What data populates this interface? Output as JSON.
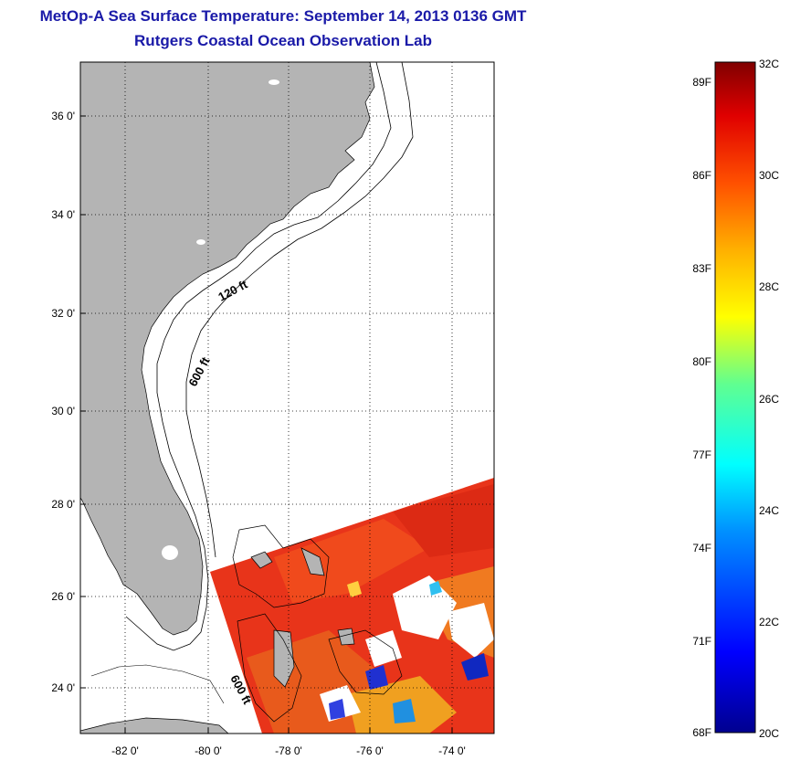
{
  "title": {
    "line1": "MetOp-A Sea Surface Temperature:  September 14, 2013 0136 GMT",
    "line2": "Rutgers Coastal Ocean Observation Lab"
  },
  "map": {
    "lat_ticks": [
      "36 0'",
      "34 0'",
      "32 0'",
      "30 0'",
      "28 0'",
      "26 0'",
      "24 0'"
    ],
    "lon_ticks": [
      "-82 0'",
      "-80 0'",
      "-78 0'",
      "-76 0'",
      "-74 0'"
    ],
    "contour_labels": [
      "120 ft",
      "600 ft",
      "600 ft"
    ],
    "colors": {
      "land": "#b4b4b4",
      "ocean": "#ffffff",
      "grid": "#000000"
    }
  },
  "colorbar": {
    "fahrenheit_labels": [
      "89F",
      "86F",
      "83F",
      "80F",
      "77F",
      "74F",
      "71F",
      "68F"
    ],
    "celsius_labels": [
      "32C",
      "30C",
      "28C",
      "26C",
      "24C",
      "22C",
      "20C"
    ],
    "range_c": [
      20,
      32
    ]
  }
}
